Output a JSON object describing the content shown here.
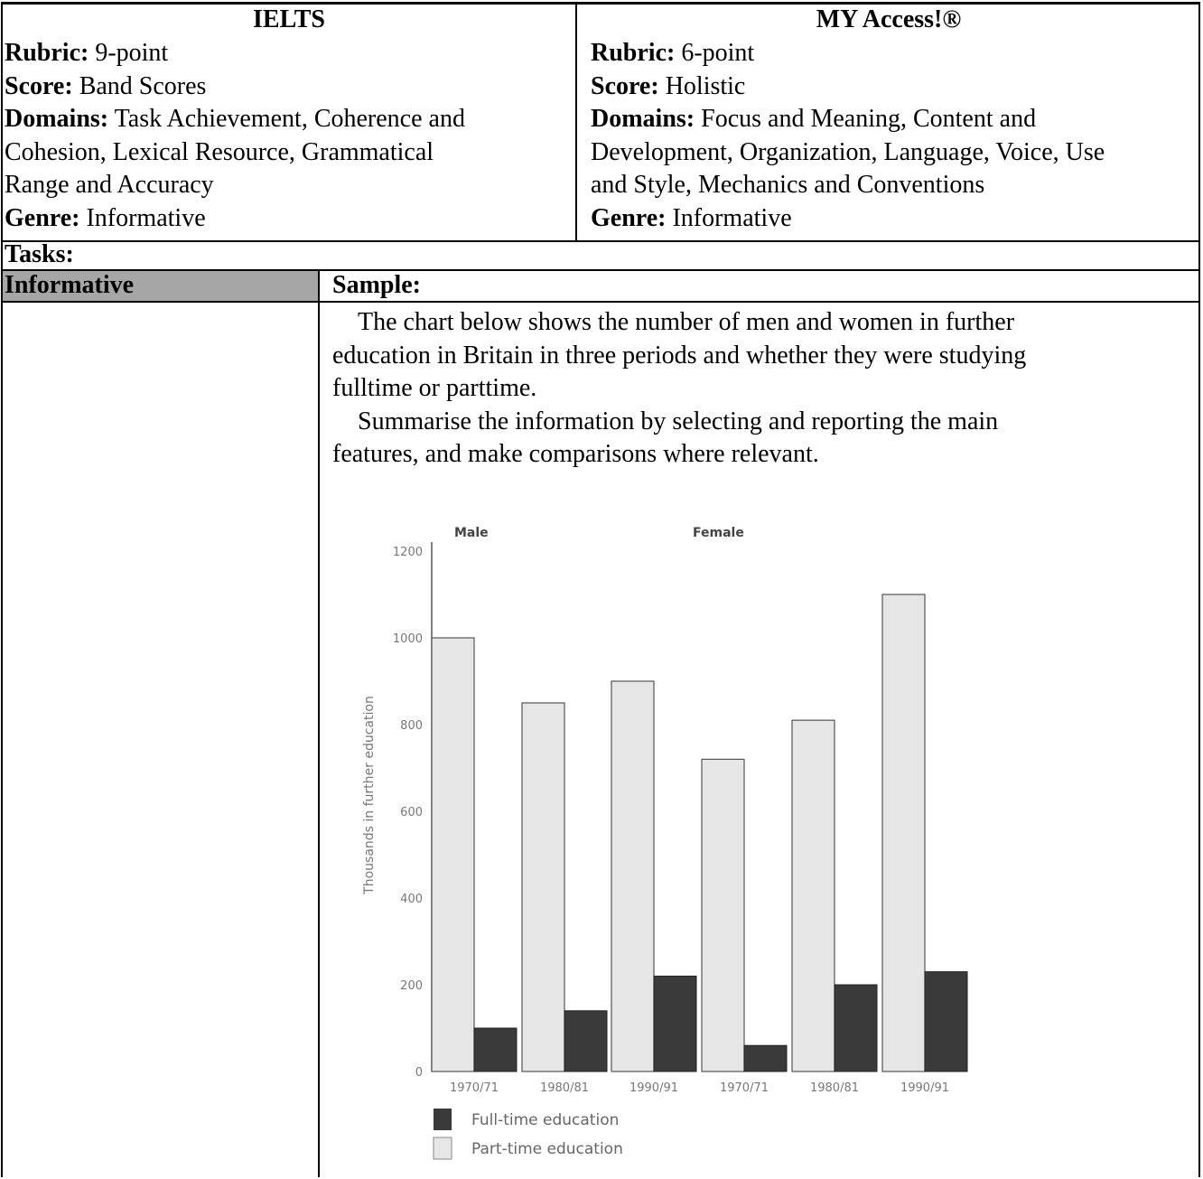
{
  "header": {
    "left_title": "IELTS",
    "right_title": "MY Access!®"
  },
  "left": {
    "rubric_label": "Rubric:",
    "rubric_value": "9-point",
    "score_label": "Score:",
    "score_value": "Band Scores",
    "domains_label": "Domains:",
    "domains_line1": "Task Achievement, Coherence and",
    "domains_line2": "Cohesion, Lexical Resource, Grammatical",
    "domains_line3": "Range and Accuracy",
    "genre_label": "Genre:",
    "genre_value": "Informative"
  },
  "right": {
    "rubric_label": "Rubric:",
    "rubric_value": "6-point",
    "score_label": "Score:",
    "score_value": "Holistic",
    "domains_label": "Domains:",
    "domains_line1": "Focus and Meaning, Content and",
    "domains_line2": "Development, Organization, Language, Voice, Use",
    "domains_line3": "and Style, Mechanics and Conventions",
    "genre_label": "Genre:",
    "genre_value": "Informative"
  },
  "tasks_label": "Tasks:",
  "task_name": "Informative",
  "sample_label": "Sample:",
  "sample": {
    "p1_line1": "The chart below shows the number of men and women in further",
    "p1_line2": "education in Britain in three periods and whether they were studying",
    "p1_line3": "fulltime or parttime.",
    "p2_line1": "Summarise the information by selecting and reporting the main",
    "p2_line2": "features, and make comparisons where relevant."
  },
  "chart_data": {
    "type": "bar",
    "group_labels": [
      "Male",
      "Female"
    ],
    "categories": [
      "1970/71",
      "1980/81",
      "1990/91",
      "1970/71",
      "1980/81",
      "1990/91"
    ],
    "series": [
      {
        "name": "Part-time education",
        "values": [
          1000,
          850,
          900,
          720,
          810,
          1100
        ],
        "color": "#e6e6e6"
      },
      {
        "name": "Full-time education",
        "values": [
          100,
          140,
          220,
          60,
          200,
          230
        ],
        "color": "#3a3a3a"
      }
    ],
    "ylabel": "Thousands in further education",
    "ylim": [
      0,
      1200
    ],
    "yticks": [
      "0",
      "200",
      "400",
      "600",
      "800",
      "1000",
      "1200"
    ],
    "legend": [
      "Full-time education",
      "Part-time education"
    ],
    "legend_position": "bottom-left"
  }
}
